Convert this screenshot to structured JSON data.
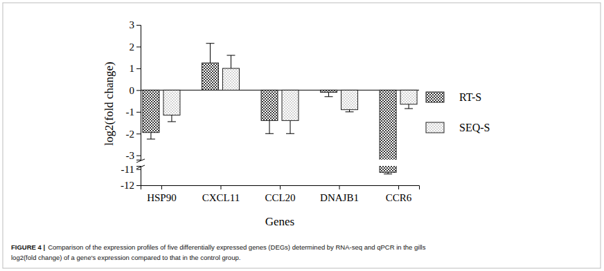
{
  "chart_data": {
    "type": "bar",
    "categories": [
      "HSP90",
      "CXCL11",
      "CCL20",
      "DNAJB1",
      "CCR6"
    ],
    "series": [
      {
        "name": "RT-S",
        "color": "#3a3a3a",
        "values": [
          -1.95,
          1.25,
          -1.4,
          -0.1,
          -11.2
        ],
        "errors": [
          0.3,
          0.9,
          0.6,
          0.2,
          0.1
        ]
      },
      {
        "name": "SEQ-S",
        "color": "#8a8a8a",
        "values": [
          -1.15,
          1.0,
          -1.4,
          -0.9,
          -0.65
        ],
        "errors": [
          0.3,
          0.6,
          0.6,
          0.1,
          0.2
        ]
      }
    ],
    "x_label": "Genes",
    "y_label": "log2(fold change)",
    "ylim": [
      -12,
      3
    ],
    "y_break": [
      -10.8,
      -3.2
    ],
    "yticks": [
      -12,
      -11,
      -3,
      -2,
      -1,
      0,
      1,
      2,
      3
    ],
    "legend": "right",
    "caption": {
      "label": "FIGURE 4 |",
      "lines": [
        "Comparison of the expression profiles of five differentially expressed genes (DEGs) determined by RNA-seq and qPCR in the gills",
        "log2(fold change) of a gene's expression compared to that in the control group."
      ]
    }
  }
}
